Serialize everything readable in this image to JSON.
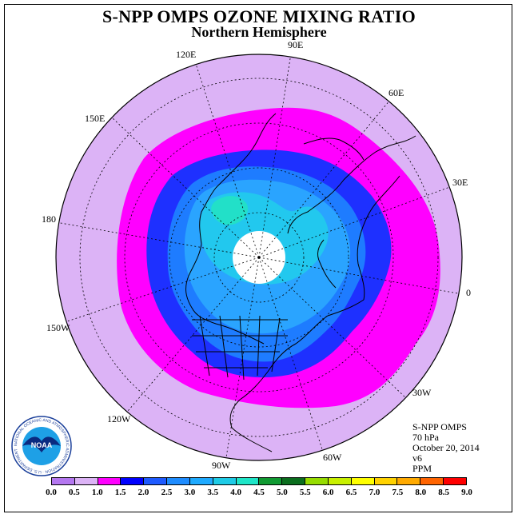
{
  "title": "S-NPP OMPS OZONE MIXING RATIO",
  "subtitle": "Northern Hemisphere",
  "longitude_labels": [
    "90E",
    "60E",
    "30E",
    "0",
    "30W",
    "60W",
    "90W",
    "120W",
    "150W",
    "180",
    "150E",
    "120E"
  ],
  "info": {
    "line1": "S-NPP OMPS",
    "line2": "70 hPa",
    "line3": "October 20, 2014",
    "line4": "v6",
    "line5": "PPM"
  },
  "logo": {
    "text": "NOAA",
    "ring_text": "NATIONAL OCEANIC AND ATMOSPHERIC ADMINISTRATION · U.S. DEPARTMENT OF COMMERCE"
  },
  "colorbar": {
    "labels": [
      "0.0",
      "0.5",
      "1.0",
      "1.5",
      "2.0",
      "2.5",
      "3.0",
      "3.5",
      "4.0",
      "4.5",
      "5.0",
      "5.5",
      "6.0",
      "6.5",
      "7.0",
      "7.5",
      "8.0",
      "8.5",
      "9.0"
    ],
    "colors": [
      "#b477f0",
      "#dcb3f6",
      "#ff00ff",
      "#0000ff",
      "#1e5aff",
      "#1e8cff",
      "#1eaaff",
      "#1ecbe6",
      "#1ee6c8",
      "#109a32",
      "#0a6e1e",
      "#96dc00",
      "#c8f000",
      "#ffff00",
      "#ffd200",
      "#ffaa00",
      "#ff6400",
      "#ff0000",
      "#8c5028"
    ]
  },
  "colors": {
    "background_level": "#dcb3f6",
    "ring_magenta": "#ff00ff",
    "level_blue": "#1e30ff",
    "level_mid": "#1e7cff",
    "level_light": "#2aa4ff",
    "level_cyan": "#22c8ee",
    "level_teal": "#22e0c8",
    "pole_gap": "#ffffff"
  }
}
